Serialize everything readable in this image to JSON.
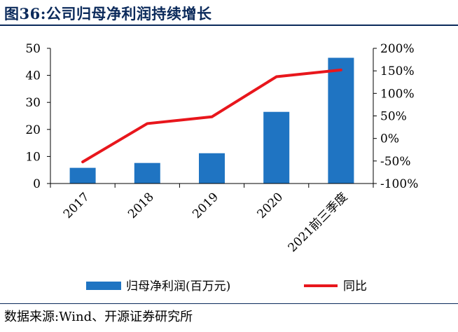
{
  "figure": {
    "title": "图36:公司归母净利润持续增长",
    "source": "数据来源:Wind、开源证券研究所"
  },
  "chart_data": {
    "type": "bar+line",
    "categories": [
      "2017",
      "2018",
      "2019",
      "2020",
      "2021前三季度"
    ],
    "series": [
      {
        "name": "归母净利润(百万元)",
        "type": "bar",
        "axis": "left",
        "color": "#1f74c2",
        "values": [
          5.8,
          7.6,
          11.2,
          26.5,
          46.5
        ]
      },
      {
        "name": "同比",
        "type": "line",
        "axis": "right",
        "color": "#e8161c",
        "values": [
          -52,
          33,
          48,
          137,
          152
        ]
      }
    ],
    "y_left": {
      "min": 0,
      "max": 50,
      "ticks": [
        0,
        10,
        20,
        30,
        40,
        50
      ]
    },
    "y_right": {
      "min": -100,
      "max": 200,
      "ticks": [
        -100,
        -50,
        0,
        50,
        100,
        150,
        200
      ],
      "tick_labels": [
        "-100%",
        "-50%",
        "0%",
        "50%",
        "100%",
        "150%",
        "200%"
      ]
    },
    "grid": false,
    "legend": "bottom"
  }
}
